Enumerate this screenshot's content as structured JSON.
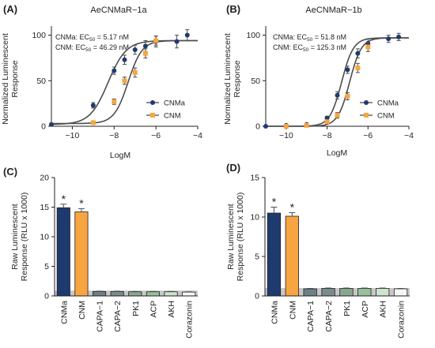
{
  "colors": {
    "CNMa": "#1f3a6e",
    "CNM": "#f7a541",
    "CAPA-1": "#6e7f86",
    "CAPA-2": "#7a8b8e",
    "PK1": "#8aa890",
    "ACP": "#97c19a",
    "AKH": "#cde4cf",
    "Corazonin": "#f2f7f2",
    "baseline": "#c8c8c8",
    "curve": "#4d4d4f"
  },
  "chart_data": [
    {
      "panel": "(A)",
      "type": "scatter",
      "title": "AeCNMaR−1a",
      "xlabel": "LogM",
      "ylabel": "Normalized Luminescent Response",
      "xlim": [
        -11,
        -4
      ],
      "ylim": [
        0,
        110
      ],
      "xticks": [
        -10,
        -8,
        -6,
        -4
      ],
      "yticks": [
        0,
        50,
        100
      ],
      "xtick_labels": [
        "−10",
        "−8",
        "−6",
        "−4"
      ],
      "ytick_labels": [
        "0",
        "50",
        "100"
      ],
      "ec50_lines": [
        {
          "prefix": "CNMa: EC",
          "sub": "50",
          "suffix": " = 5.17 nM"
        },
        {
          "prefix": "CNM: EC",
          "sub": "50",
          "suffix": " = 46.29 nM"
        }
      ],
      "legend_position": "right",
      "series": [
        {
          "name": "CNMa",
          "marker": "circle",
          "ec50_logM": -8.29,
          "hill": 1.0,
          "top": 94,
          "bottom": 2,
          "x": [
            -11,
            -9,
            -8,
            -7.5,
            -7,
            -6.5,
            -6,
            -5,
            -4.5
          ],
          "y": [
            2,
            23,
            61,
            73,
            84,
            88,
            93,
            93,
            100
          ],
          "err": [
            0,
            3,
            4,
            5,
            5,
            6,
            6,
            7,
            6
          ]
        },
        {
          "name": "CNM",
          "marker": "square",
          "ec50_logM": -7.33,
          "hill": 1.3,
          "top": 94,
          "bottom": 3,
          "x": [
            -9,
            -8,
            -7.5,
            -7,
            -6.5,
            -6
          ],
          "y": [
            4,
            27,
            50,
            59,
            80,
            94
          ],
          "err": [
            2,
            3,
            4,
            5,
            5,
            5
          ]
        }
      ]
    },
    {
      "panel": "(B)",
      "type": "scatter",
      "title": "AeCNMaR−1b",
      "xlabel": "LogM",
      "ylabel": "Normalized Luminescent Response",
      "xlim": [
        -11,
        -4
      ],
      "ylim": [
        0,
        110
      ],
      "xticks": [
        -10,
        -8,
        -6,
        -4
      ],
      "yticks": [
        0,
        50,
        100
      ],
      "xtick_labels": [
        "−10",
        "−8",
        "−6",
        "−4"
      ],
      "ytick_labels": [
        "0",
        "50",
        "100"
      ],
      "ec50_lines": [
        {
          "prefix": "CNMa: EC",
          "sub": "50",
          "suffix": " = 51.8 nM"
        },
        {
          "prefix": "CNM: EC",
          "sub": "50",
          "suffix": " = 125.3 nM"
        }
      ],
      "legend_position": "right",
      "series": [
        {
          "name": "CNMa",
          "marker": "circle",
          "ec50_logM": -7.29,
          "hill": 1.5,
          "top": 97,
          "bottom": 0,
          "x": [
            -11,
            -10,
            -9,
            -8,
            -7.5,
            -7,
            -6.5,
            -6,
            -5,
            -4.5
          ],
          "y": [
            0,
            1,
            2,
            9,
            34,
            62,
            80,
            91,
            96,
            98
          ],
          "err": [
            0,
            0,
            1,
            2,
            4,
            4,
            5,
            5,
            4,
            4
          ]
        },
        {
          "name": "CNM",
          "marker": "square",
          "ec50_logM": -6.9,
          "hill": 1.5,
          "top": 97,
          "bottom": 0,
          "x": [
            -10,
            -9,
            -8,
            -7.5,
            -7,
            -6.5,
            -6
          ],
          "y": [
            0,
            1,
            5,
            12,
            33,
            64,
            87
          ],
          "err": [
            0,
            0,
            2,
            3,
            4,
            5,
            5
          ]
        }
      ]
    },
    {
      "panel": "(C)",
      "type": "bar",
      "ylabel": "Raw Luminescent Response (RLU x 1000)",
      "ylim": [
        0,
        20
      ],
      "yticks": [
        0,
        5,
        10,
        15,
        20
      ],
      "ytick_labels": [
        "0",
        "5",
        "10",
        "15",
        "20"
      ],
      "categories": [
        "CNMa",
        "CNM",
        "CAPA−1",
        "CAPA−2",
        "PK1",
        "ACP",
        "AKH",
        "Corazonin"
      ],
      "values": [
        14.9,
        14.2,
        0.75,
        0.75,
        0.7,
        0.7,
        0.7,
        0.65
      ],
      "errors": [
        0.6,
        0.55,
        0.05,
        0.05,
        0.05,
        0.05,
        0.05,
        0.05
      ],
      "baseline_band": 0.9,
      "significant": [
        true,
        true,
        false,
        false,
        false,
        false,
        false,
        false
      ],
      "star_label": "*"
    },
    {
      "panel": "(D)",
      "type": "bar",
      "ylabel": "Raw Luminescent Response (RLU x 1000)",
      "ylim": [
        0,
        15
      ],
      "yticks": [
        0,
        5,
        10,
        15
      ],
      "ytick_labels": [
        "0",
        "5",
        "10",
        "15"
      ],
      "categories": [
        "CNMa",
        "CNM",
        "CAPA−1",
        "CAPA−2",
        "PK1",
        "ACP",
        "AKH",
        "Corazonin"
      ],
      "values": [
        10.5,
        10.1,
        0.9,
        0.95,
        0.95,
        0.95,
        0.95,
        0.9
      ],
      "errors": [
        0.75,
        0.45,
        0.05,
        0.05,
        0.05,
        0.05,
        0.05,
        0.05
      ],
      "baseline_band": 1.0,
      "significant": [
        true,
        true,
        false,
        false,
        false,
        false,
        false,
        false
      ],
      "star_label": "*"
    }
  ]
}
